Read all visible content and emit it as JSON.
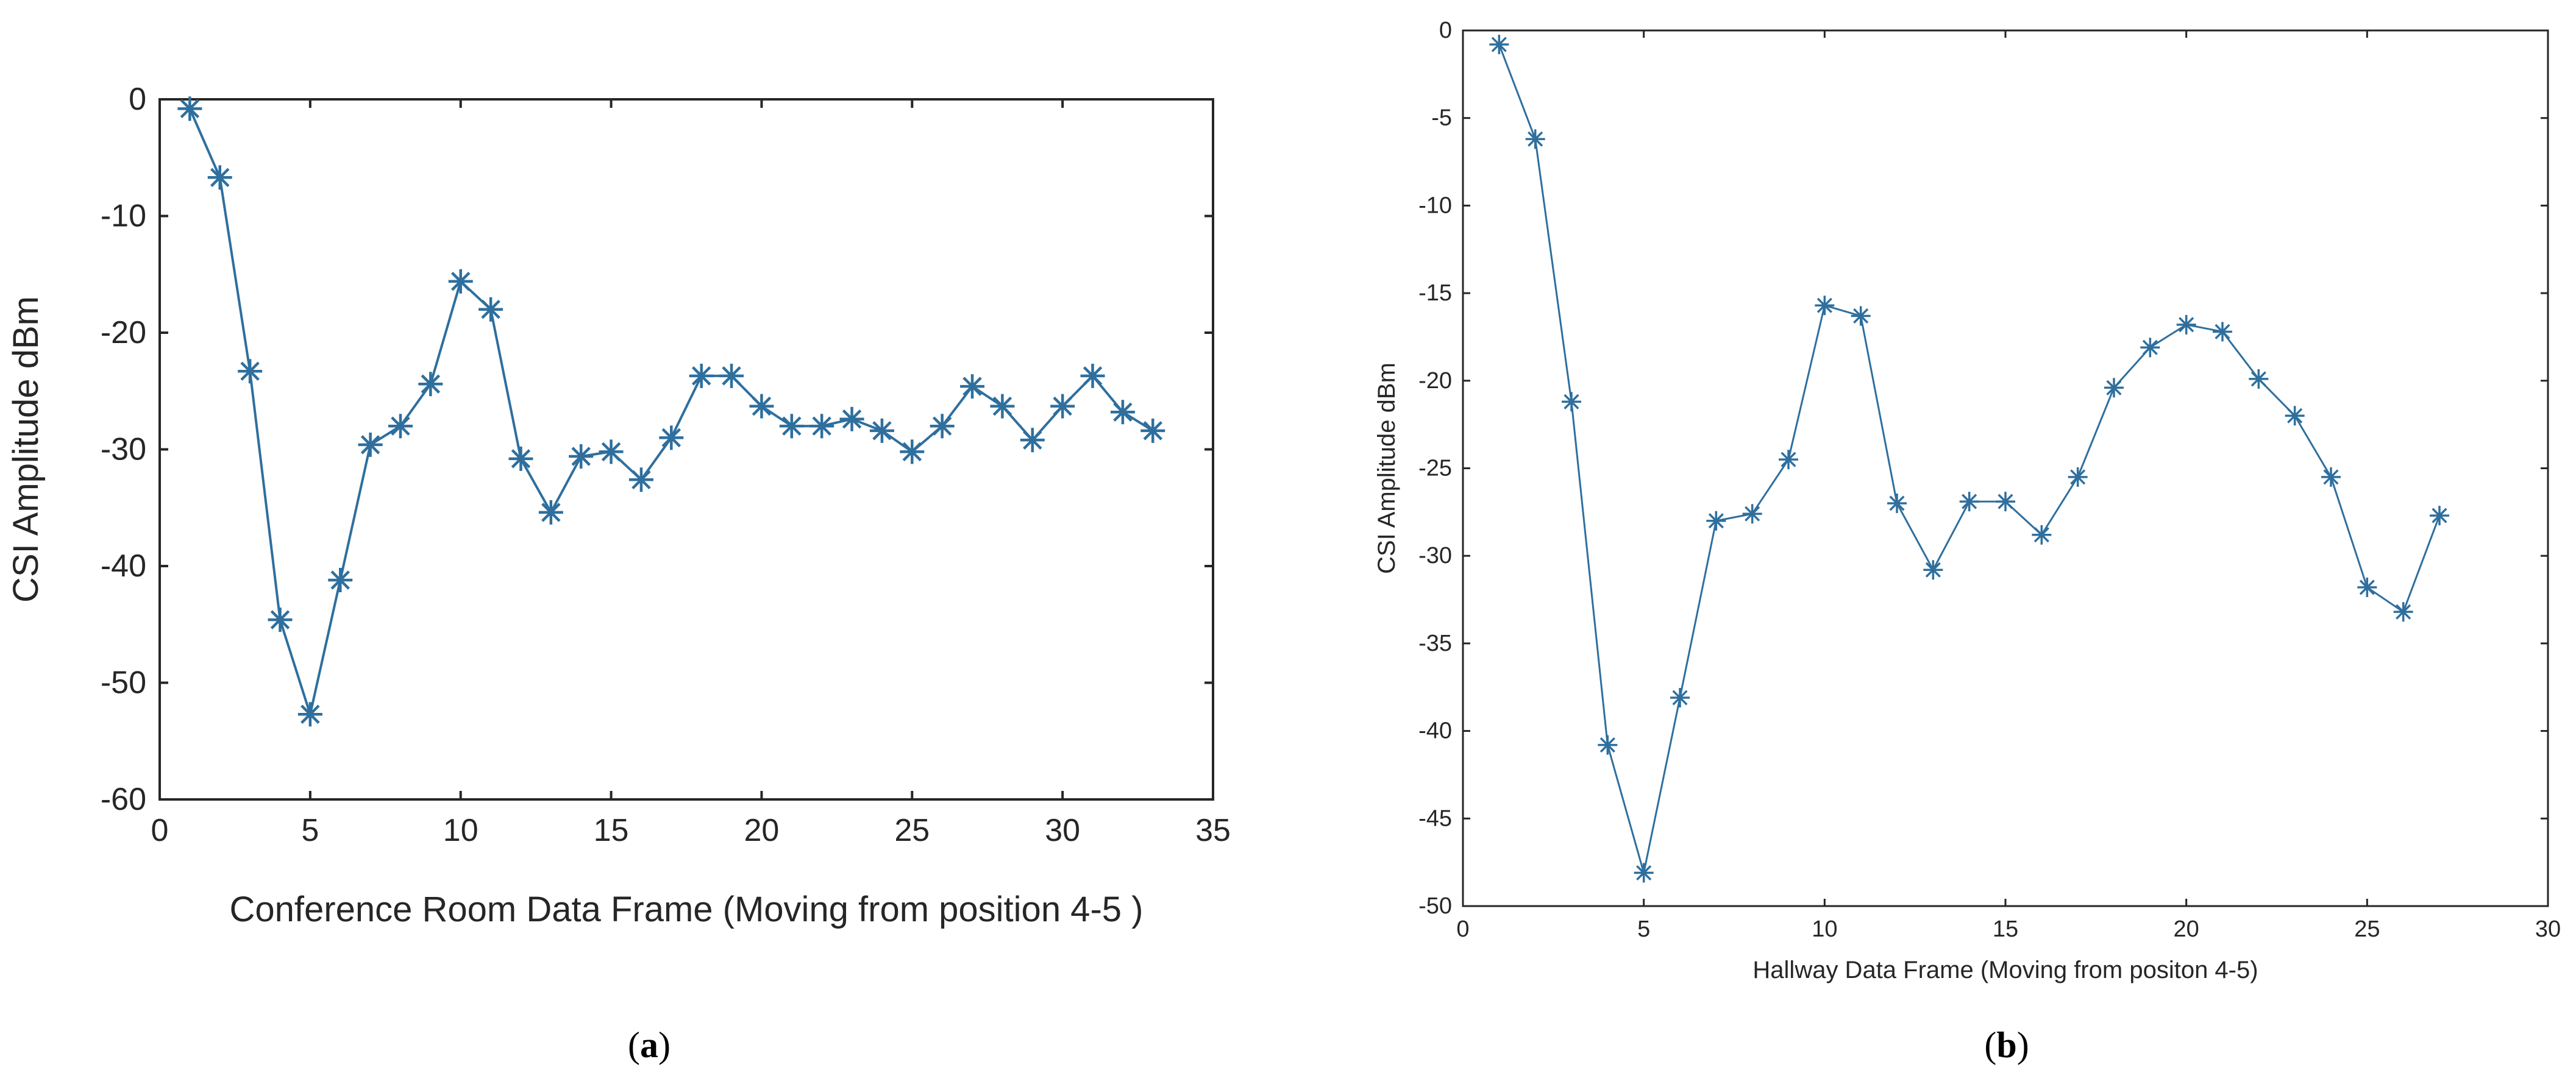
{
  "chart_data": [
    {
      "type": "line",
      "panel_label": "a",
      "title": "",
      "xlabel": "Conference Room Data Frame (Moving from position 4-5 )",
      "ylabel": "CSI Amplitude dBm",
      "xlim": [
        0,
        35
      ],
      "ylim": [
        -60,
        0
      ],
      "xticks": [
        0,
        5,
        10,
        15,
        20,
        25,
        30,
        35
      ],
      "yticks": [
        0,
        -10,
        -20,
        -30,
        -40,
        -50,
        -60
      ],
      "grid": false,
      "marker": "*",
      "color": "#2e6f9e",
      "series": [
        {
          "name": "CSI Amplitude",
          "x": [
            1,
            2,
            3,
            4,
            5,
            6,
            7,
            8,
            9,
            10,
            11,
            12,
            13,
            14,
            15,
            16,
            17,
            18,
            19,
            20,
            21,
            22,
            23,
            24,
            25,
            26,
            27,
            28,
            29,
            30,
            31,
            32,
            33
          ],
          "values": [
            -0.8,
            -6.7,
            -23.3,
            -44.6,
            -52.7,
            -41.2,
            -29.6,
            -28.0,
            -24.4,
            -15.6,
            -18.0,
            -30.8,
            -35.4,
            -30.6,
            -30.2,
            -32.6,
            -29.0,
            -23.7,
            -23.7,
            -26.3,
            -28.0,
            -28.0,
            -27.4,
            -28.4,
            -30.2,
            -28.0,
            -24.6,
            -26.3,
            -29.2,
            -26.3,
            -23.7,
            -26.8,
            -28.4
          ]
        }
      ]
    },
    {
      "type": "line",
      "panel_label": "b",
      "title": "",
      "xlabel": "Hallway Data Frame (Moving from positon 4-5)",
      "ylabel": "CSI Amplitude dBm",
      "xlim": [
        0,
        30
      ],
      "ylim": [
        -50,
        0
      ],
      "xticks": [
        0,
        5,
        10,
        15,
        20,
        25,
        30
      ],
      "yticks": [
        0,
        -5,
        -10,
        -15,
        -20,
        -25,
        -30,
        -35,
        -40,
        -45,
        -50
      ],
      "grid": false,
      "marker": "*",
      "color": "#2e6f9e",
      "series": [
        {
          "name": "CSI Amplitude",
          "x": [
            1,
            2,
            3,
            4,
            5,
            6,
            7,
            8,
            9,
            10,
            11,
            12,
            13,
            14,
            15,
            16,
            17,
            18,
            19,
            20,
            21,
            22,
            23,
            24,
            25,
            26,
            27
          ],
          "values": [
            -0.8,
            -6.2,
            -21.2,
            -40.8,
            -48.1,
            -38.1,
            -28.0,
            -27.6,
            -24.5,
            -15.7,
            -16.3,
            -27.0,
            -30.8,
            -26.9,
            -26.9,
            -28.8,
            -25.5,
            -20.4,
            -18.1,
            -16.8,
            -17.2,
            -19.9,
            -22.0,
            -25.5,
            -31.8,
            -33.2,
            -27.7
          ]
        }
      ]
    }
  ],
  "captions": [
    "a",
    "b"
  ]
}
